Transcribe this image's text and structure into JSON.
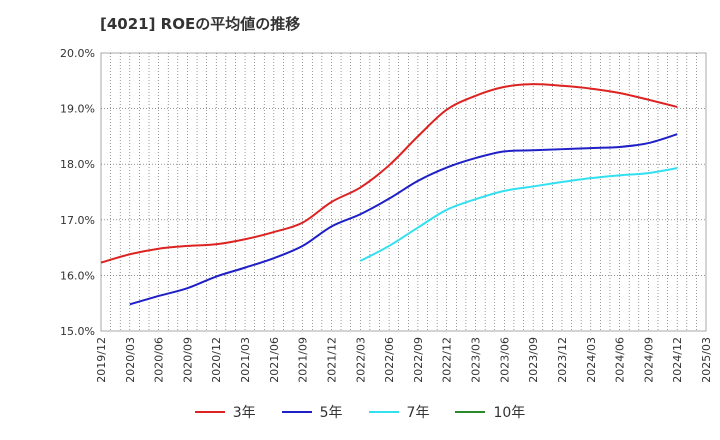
{
  "title": "[4021]  ROEの平均値の推移",
  "chart_data": {
    "type": "line",
    "title": "[4021]  ROEの平均値の推移",
    "xlabel": "",
    "ylabel": "",
    "ylim": [
      15.0,
      20.0
    ],
    "yticks": [
      "15.0%",
      "16.0%",
      "17.0%",
      "18.0%",
      "19.0%",
      "20.0%"
    ],
    "x_categories": [
      "2019/12",
      "2020/03",
      "2020/06",
      "2020/09",
      "2020/12",
      "2021/03",
      "2021/06",
      "2021/09",
      "2021/12",
      "2022/03",
      "2022/06",
      "2022/09",
      "2022/12",
      "2023/03",
      "2023/06",
      "2023/09",
      "2023/12",
      "2024/03",
      "2024/06",
      "2024/09",
      "2024/12",
      "2025/03"
    ],
    "grid": true,
    "legend_position": "bottom",
    "series": [
      {
        "name": "3年",
        "color": "#dd2222",
        "values": [
          16.23,
          16.38,
          16.48,
          16.53,
          16.56,
          16.65,
          16.78,
          16.95,
          17.32,
          17.58,
          17.98,
          18.5,
          18.98,
          19.23,
          19.39,
          19.44,
          19.41,
          19.36,
          19.28,
          19.16,
          19.03,
          null
        ]
      },
      {
        "name": "5年",
        "color": "#1f1fc8",
        "values": [
          null,
          15.48,
          15.63,
          15.77,
          15.98,
          16.14,
          16.31,
          16.53,
          16.88,
          17.1,
          17.38,
          17.7,
          17.94,
          18.11,
          18.23,
          18.25,
          18.27,
          18.29,
          18.31,
          18.38,
          18.54,
          null
        ]
      },
      {
        "name": "7年",
        "color": "#33e0f0",
        "values": [
          null,
          null,
          null,
          null,
          null,
          null,
          null,
          null,
          null,
          16.26,
          16.53,
          16.86,
          17.18,
          17.37,
          17.52,
          17.6,
          17.68,
          17.75,
          17.8,
          17.84,
          17.93,
          null
        ]
      },
      {
        "name": "10年",
        "color": "#2a8a2a",
        "values": [
          null,
          null,
          null,
          null,
          null,
          null,
          null,
          null,
          null,
          null,
          null,
          null,
          null,
          null,
          null,
          null,
          null,
          null,
          null,
          null,
          null,
          null
        ]
      }
    ]
  }
}
